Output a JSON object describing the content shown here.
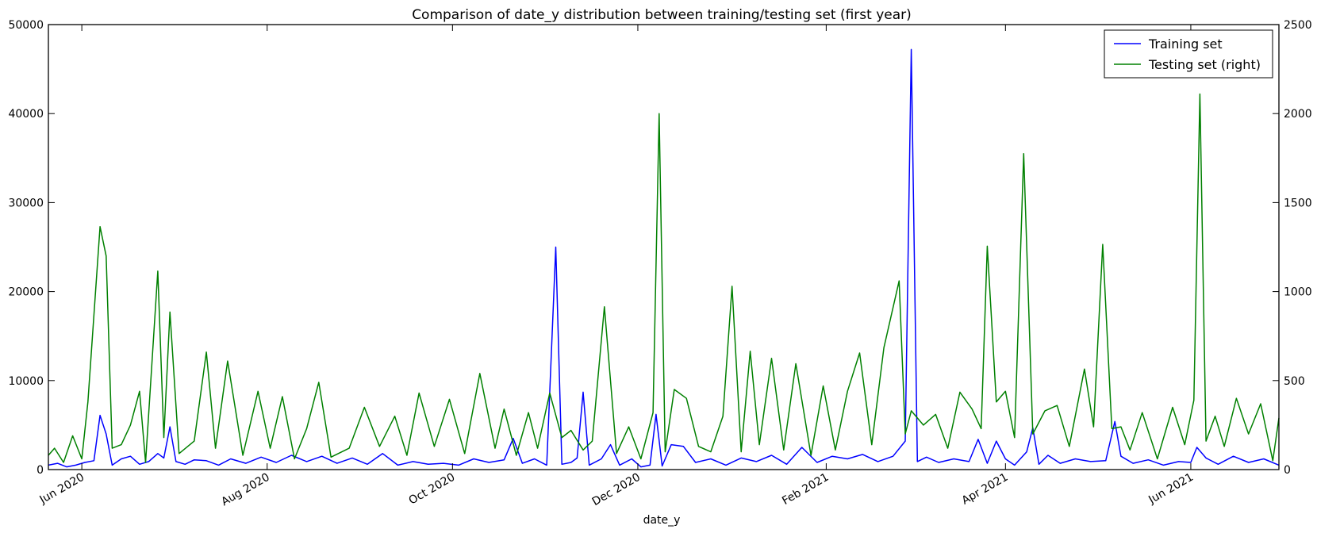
{
  "chart_data": {
    "type": "line",
    "title": "Comparison of date_y distribution between training/testing set (first year)",
    "xlabel": "date_y",
    "ylabel": "",
    "ylabel_right": "",
    "x_start": "2020-05-21",
    "x_end": "2021-06-30",
    "x_tick_labels": [
      {
        "date": "2020-06-01",
        "label": "Jun 2020"
      },
      {
        "date": "2020-08-01",
        "label": "Aug 2020"
      },
      {
        "date": "2020-10-01",
        "label": "Oct 2020"
      },
      {
        "date": "2020-12-01",
        "label": "Dec 2020"
      },
      {
        "date": "2021-02-01",
        "label": "Feb 2021"
      },
      {
        "date": "2021-04-01",
        "label": "Apr 2021"
      },
      {
        "date": "2021-06-01",
        "label": "Jun 2021"
      }
    ],
    "y_left": {
      "lim": [
        0,
        50000
      ],
      "ticks": [
        0,
        10000,
        20000,
        30000,
        40000,
        50000
      ]
    },
    "y_right": {
      "lim": [
        0,
        2500
      ],
      "ticks": [
        0,
        500,
        1000,
        1500,
        2000,
        2500
      ]
    },
    "legend": "top-right",
    "series": [
      {
        "name": "Training set",
        "axis": "left",
        "color": "#0000ff",
        "points": [
          [
            "2020-05-21",
            500
          ],
          [
            "2020-05-24",
            700
          ],
          [
            "2020-05-27",
            300
          ],
          [
            "2020-05-30",
            500
          ],
          [
            "2020-06-02",
            800
          ],
          [
            "2020-06-05",
            1000
          ],
          [
            "2020-06-07",
            6100
          ],
          [
            "2020-06-09",
            4000
          ],
          [
            "2020-06-11",
            500
          ],
          [
            "2020-06-14",
            1200
          ],
          [
            "2020-06-17",
            1500
          ],
          [
            "2020-06-20",
            600
          ],
          [
            "2020-06-23",
            900
          ],
          [
            "2020-06-26",
            1800
          ],
          [
            "2020-06-28",
            1300
          ],
          [
            "2020-06-30",
            4800
          ],
          [
            "2020-07-02",
            900
          ],
          [
            "2020-07-05",
            600
          ],
          [
            "2020-07-08",
            1100
          ],
          [
            "2020-07-12",
            1000
          ],
          [
            "2020-07-16",
            500
          ],
          [
            "2020-07-20",
            1200
          ],
          [
            "2020-07-25",
            700
          ],
          [
            "2020-07-30",
            1400
          ],
          [
            "2020-08-04",
            800
          ],
          [
            "2020-08-09",
            1600
          ],
          [
            "2020-08-14",
            900
          ],
          [
            "2020-08-19",
            1500
          ],
          [
            "2020-08-24",
            700
          ],
          [
            "2020-08-29",
            1300
          ],
          [
            "2020-09-03",
            600
          ],
          [
            "2020-09-08",
            1800
          ],
          [
            "2020-09-13",
            500
          ],
          [
            "2020-09-18",
            900
          ],
          [
            "2020-09-23",
            600
          ],
          [
            "2020-09-28",
            700
          ],
          [
            "2020-10-03",
            500
          ],
          [
            "2020-10-08",
            1200
          ],
          [
            "2020-10-13",
            800
          ],
          [
            "2020-10-18",
            1100
          ],
          [
            "2020-10-21",
            3500
          ],
          [
            "2020-10-24",
            700
          ],
          [
            "2020-10-28",
            1200
          ],
          [
            "2020-11-01",
            500
          ],
          [
            "2020-11-04",
            25000
          ],
          [
            "2020-11-06",
            600
          ],
          [
            "2020-11-09",
            800
          ],
          [
            "2020-11-11",
            1300
          ],
          [
            "2020-11-13",
            8700
          ],
          [
            "2020-11-15",
            500
          ],
          [
            "2020-11-19",
            1200
          ],
          [
            "2020-11-22",
            2800
          ],
          [
            "2020-11-25",
            500
          ],
          [
            "2020-11-29",
            1200
          ],
          [
            "2020-12-02",
            300
          ],
          [
            "2020-12-05",
            500
          ],
          [
            "2020-12-07",
            6200
          ],
          [
            "2020-12-09",
            400
          ],
          [
            "2020-12-12",
            2800
          ],
          [
            "2020-12-16",
            2600
          ],
          [
            "2020-12-20",
            800
          ],
          [
            "2020-12-25",
            1200
          ],
          [
            "2020-12-30",
            500
          ],
          [
            "2021-01-04",
            1300
          ],
          [
            "2021-01-09",
            900
          ],
          [
            "2021-01-14",
            1600
          ],
          [
            "2021-01-19",
            600
          ],
          [
            "2021-01-24",
            2500
          ],
          [
            "2021-01-29",
            800
          ],
          [
            "2021-02-03",
            1500
          ],
          [
            "2021-02-08",
            1200
          ],
          [
            "2021-02-13",
            1700
          ],
          [
            "2021-02-18",
            900
          ],
          [
            "2021-02-23",
            1500
          ],
          [
            "2021-02-27",
            3200
          ],
          [
            "2021-03-01",
            47200
          ],
          [
            "2021-03-03",
            900
          ],
          [
            "2021-03-06",
            1400
          ],
          [
            "2021-03-10",
            800
          ],
          [
            "2021-03-15",
            1200
          ],
          [
            "2021-03-20",
            900
          ],
          [
            "2021-03-23",
            3400
          ],
          [
            "2021-03-26",
            700
          ],
          [
            "2021-03-29",
            3200
          ],
          [
            "2021-04-01",
            1200
          ],
          [
            "2021-04-04",
            500
          ],
          [
            "2021-04-08",
            2000
          ],
          [
            "2021-04-10",
            4700
          ],
          [
            "2021-04-12",
            600
          ],
          [
            "2021-04-15",
            1600
          ],
          [
            "2021-04-19",
            700
          ],
          [
            "2021-04-24",
            1200
          ],
          [
            "2021-04-29",
            900
          ],
          [
            "2021-05-04",
            1000
          ],
          [
            "2021-05-07",
            5400
          ],
          [
            "2021-05-09",
            1500
          ],
          [
            "2021-05-13",
            700
          ],
          [
            "2021-05-18",
            1100
          ],
          [
            "2021-05-23",
            500
          ],
          [
            "2021-05-28",
            900
          ],
          [
            "2021-06-01",
            800
          ],
          [
            "2021-06-03",
            2500
          ],
          [
            "2021-06-06",
            1300
          ],
          [
            "2021-06-10",
            600
          ],
          [
            "2021-06-15",
            1500
          ],
          [
            "2021-06-20",
            800
          ],
          [
            "2021-06-25",
            1200
          ],
          [
            "2021-06-30",
            500
          ]
        ]
      },
      {
        "name": "Testing set (right)",
        "axis": "right",
        "color": "#008000",
        "points": [
          [
            "2020-05-21",
            80
          ],
          [
            "2020-05-23",
            120
          ],
          [
            "2020-05-26",
            40
          ],
          [
            "2020-05-29",
            190
          ],
          [
            "2020-06-01",
            60
          ],
          [
            "2020-06-03",
            380
          ],
          [
            "2020-06-07",
            1365
          ],
          [
            "2020-06-09",
            1200
          ],
          [
            "2020-06-11",
            120
          ],
          [
            "2020-06-14",
            140
          ],
          [
            "2020-06-17",
            250
          ],
          [
            "2020-06-20",
            440
          ],
          [
            "2020-06-22",
            40
          ],
          [
            "2020-06-26",
            1115
          ],
          [
            "2020-06-28",
            180
          ],
          [
            "2020-06-30",
            885
          ],
          [
            "2020-07-03",
            90
          ],
          [
            "2020-07-08",
            160
          ],
          [
            "2020-07-12",
            660
          ],
          [
            "2020-07-15",
            120
          ],
          [
            "2020-07-19",
            610
          ],
          [
            "2020-07-24",
            80
          ],
          [
            "2020-07-29",
            440
          ],
          [
            "2020-08-02",
            120
          ],
          [
            "2020-08-06",
            410
          ],
          [
            "2020-08-10",
            60
          ],
          [
            "2020-08-14",
            230
          ],
          [
            "2020-08-18",
            490
          ],
          [
            "2020-08-22",
            70
          ],
          [
            "2020-08-28",
            120
          ],
          [
            "2020-09-02",
            350
          ],
          [
            "2020-09-07",
            130
          ],
          [
            "2020-09-12",
            300
          ],
          [
            "2020-09-16",
            80
          ],
          [
            "2020-09-20",
            430
          ],
          [
            "2020-09-25",
            130
          ],
          [
            "2020-09-30",
            395
          ],
          [
            "2020-10-05",
            90
          ],
          [
            "2020-10-10",
            540
          ],
          [
            "2020-10-15",
            120
          ],
          [
            "2020-10-18",
            340
          ],
          [
            "2020-10-22",
            80
          ],
          [
            "2020-10-26",
            320
          ],
          [
            "2020-10-29",
            120
          ],
          [
            "2020-11-02",
            430
          ],
          [
            "2020-11-06",
            180
          ],
          [
            "2020-11-09",
            220
          ],
          [
            "2020-11-13",
            110
          ],
          [
            "2020-11-16",
            160
          ],
          [
            "2020-11-20",
            915
          ],
          [
            "2020-11-24",
            90
          ],
          [
            "2020-11-28",
            240
          ],
          [
            "2020-12-02",
            60
          ],
          [
            "2020-12-06",
            320
          ],
          [
            "2020-12-08",
            2000
          ],
          [
            "2020-12-10",
            100
          ],
          [
            "2020-12-13",
            450
          ],
          [
            "2020-12-17",
            400
          ],
          [
            "2020-12-21",
            130
          ],
          [
            "2020-12-25",
            100
          ],
          [
            "2020-12-29",
            300
          ],
          [
            "2021-01-01",
            1030
          ],
          [
            "2021-01-04",
            100
          ],
          [
            "2021-01-07",
            665
          ],
          [
            "2021-01-10",
            140
          ],
          [
            "2021-01-14",
            625
          ],
          [
            "2021-01-18",
            110
          ],
          [
            "2021-01-22",
            595
          ],
          [
            "2021-01-27",
            80
          ],
          [
            "2021-01-31",
            470
          ],
          [
            "2021-02-04",
            110
          ],
          [
            "2021-02-08",
            440
          ],
          [
            "2021-02-12",
            655
          ],
          [
            "2021-02-16",
            140
          ],
          [
            "2021-02-20",
            685
          ],
          [
            "2021-02-25",
            1060
          ],
          [
            "2021-02-27",
            200
          ],
          [
            "2021-03-01",
            330
          ],
          [
            "2021-03-05",
            250
          ],
          [
            "2021-03-09",
            310
          ],
          [
            "2021-03-13",
            120
          ],
          [
            "2021-03-17",
            435
          ],
          [
            "2021-03-21",
            340
          ],
          [
            "2021-03-24",
            230
          ],
          [
            "2021-03-26",
            1255
          ],
          [
            "2021-03-29",
            380
          ],
          [
            "2021-04-01",
            440
          ],
          [
            "2021-04-04",
            180
          ],
          [
            "2021-04-07",
            1775
          ],
          [
            "2021-04-10",
            200
          ],
          [
            "2021-04-14",
            330
          ],
          [
            "2021-04-18",
            360
          ],
          [
            "2021-04-22",
            130
          ],
          [
            "2021-04-27",
            565
          ],
          [
            "2021-04-30",
            240
          ],
          [
            "2021-05-03",
            1265
          ],
          [
            "2021-05-06",
            230
          ],
          [
            "2021-05-09",
            240
          ],
          [
            "2021-05-12",
            110
          ],
          [
            "2021-05-16",
            320
          ],
          [
            "2021-05-21",
            60
          ],
          [
            "2021-05-26",
            350
          ],
          [
            "2021-05-30",
            140
          ],
          [
            "2021-06-02",
            390
          ],
          [
            "2021-06-04",
            2110
          ],
          [
            "2021-06-06",
            160
          ],
          [
            "2021-06-09",
            300
          ],
          [
            "2021-06-12",
            130
          ],
          [
            "2021-06-16",
            400
          ],
          [
            "2021-06-20",
            200
          ],
          [
            "2021-06-24",
            370
          ],
          [
            "2021-06-28",
            50
          ],
          [
            "2021-06-30",
            290
          ]
        ]
      }
    ]
  }
}
